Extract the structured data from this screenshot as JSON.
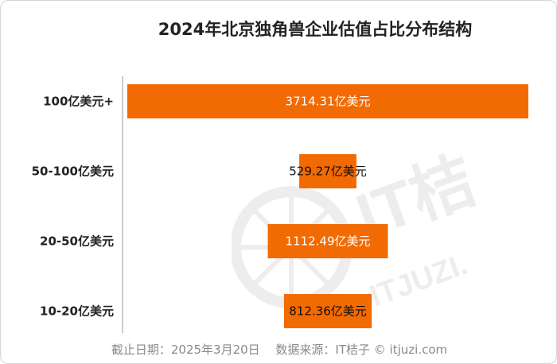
{
  "chart_data": {
    "type": "bar",
    "orientation": "horizontal",
    "title": "2024年北京独角兽企业估值占比分布结构",
    "categories": [
      "100亿美元+",
      "50-100亿美元",
      "20-50亿美元",
      "10-20亿美元"
    ],
    "values": [
      3714.31,
      529.27,
      1112.49,
      812.36
    ],
    "value_labels": [
      "3714.31亿美元",
      "529.27亿美元",
      "1112.49亿美元",
      "812.36亿美元"
    ],
    "layout": "funnel",
    "bar_color": "#F26A02",
    "label_colors": [
      "#ffffff",
      "#111111",
      "#ffffff",
      "#111111"
    ],
    "xlabel": "",
    "ylabel": "",
    "grid": false,
    "legend": "none"
  },
  "footer": {
    "source": "截止日期：2025年3月20日　 数据来源：IT桔子 © itjuzi.com"
  },
  "watermark": {
    "text": "IT桔",
    "subtext": "ITJUZI."
  }
}
